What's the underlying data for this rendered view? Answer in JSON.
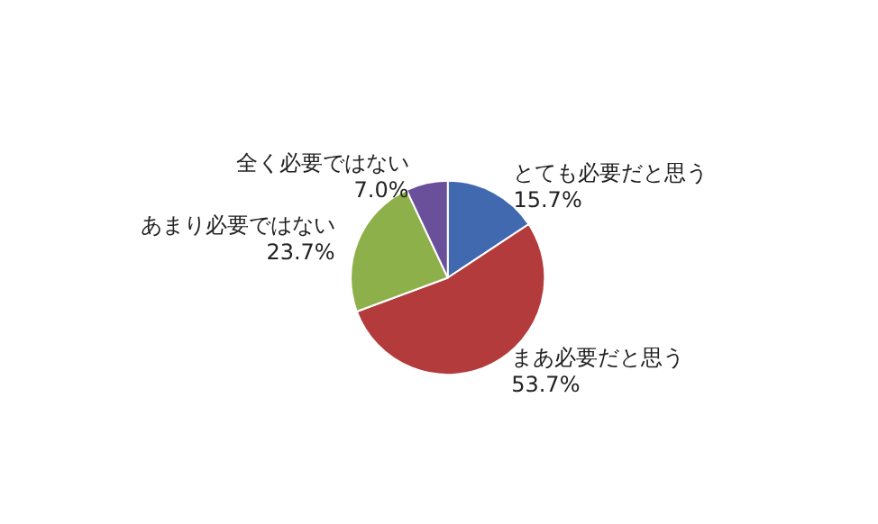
{
  "chart_data": {
    "type": "pie",
    "categories": [
      "とても必要だと思う",
      "まあ必要だと思う",
      "あまり必要ではない",
      "全く必要ではない"
    ],
    "values": [
      15.7,
      53.7,
      23.7,
      7.0
    ],
    "value_labels": [
      "15.7%",
      "53.7%",
      "23.7%",
      "7.0%"
    ],
    "colors": [
      "#4169b0",
      "#b33b3b",
      "#8db04a",
      "#6a4f9a"
    ],
    "legend": false
  }
}
